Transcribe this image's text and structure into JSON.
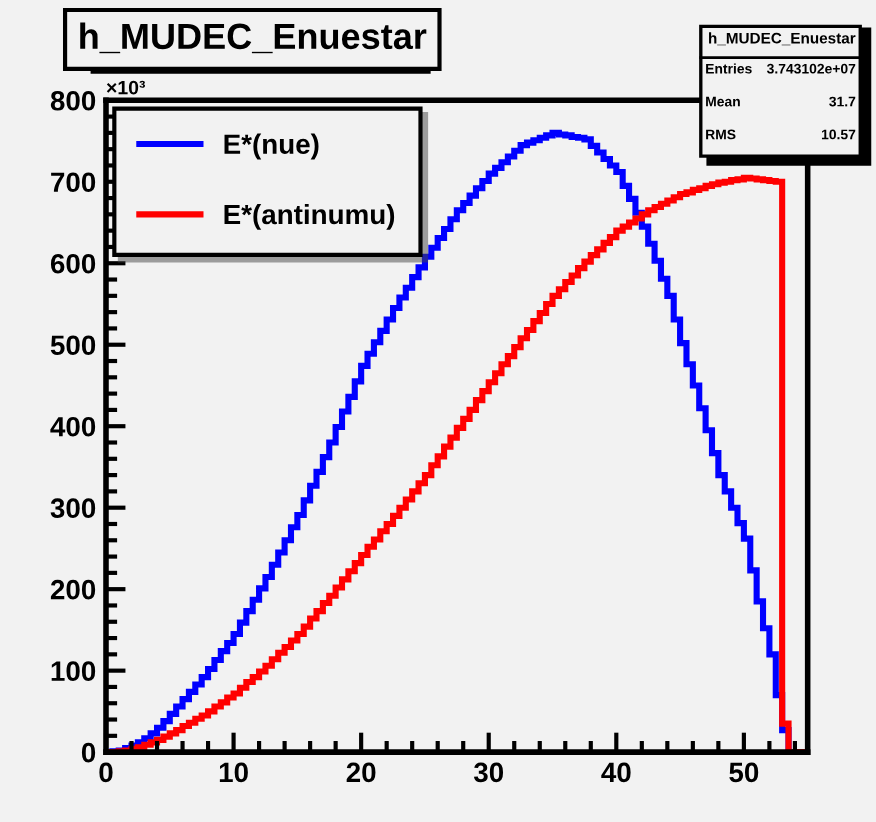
{
  "chart_data": {
    "type": "histogram",
    "title": "h_MUDEC_Enuestar",
    "bins": [
      0,
      0.5,
      1,
      1.5,
      2,
      2.5,
      3,
      3.5,
      4,
      4.5,
      5,
      5.5,
      6,
      6.5,
      7,
      7.5,
      8,
      8.5,
      9,
      9.5,
      10,
      10.5,
      11,
      11.5,
      12,
      12.5,
      13,
      13.5,
      14,
      14.5,
      15,
      15.5,
      16,
      16.5,
      17,
      17.5,
      18,
      18.5,
      19,
      19.5,
      20,
      20.5,
      21,
      21.5,
      22,
      22.5,
      23,
      23.5,
      24,
      24.5,
      25,
      25.5,
      26,
      26.5,
      27,
      27.5,
      28,
      28.5,
      29,
      29.5,
      30,
      30.5,
      31,
      31.5,
      32,
      32.5,
      33,
      33.5,
      34,
      34.5,
      35,
      35.5,
      36,
      36.5,
      37,
      37.5,
      38,
      38.5,
      39,
      39.5,
      40,
      40.5,
      41,
      41.5,
      42,
      42.5,
      43,
      43.5,
      44,
      44.5,
      45,
      45.5,
      46,
      46.5,
      47,
      47.5,
      48,
      48.5,
      49,
      49.5,
      50,
      50.5,
      51,
      51.5,
      52,
      52.5,
      53,
      53.5,
      54,
      54.5,
      55
    ],
    "series": [
      {
        "name": "E*(nue)",
        "color": "#0000ff",
        "values": [
          0,
          1,
          2,
          5,
          8,
          12,
          17,
          23,
          30,
          38,
          47,
          56,
          65,
          74,
          83,
          92,
          102,
          113,
          124,
          134,
          145,
          159,
          173,
          187,
          201,
          215,
          230,
          245,
          260,
          276,
          291,
          309,
          327,
          344,
          362,
          380,
          399,
          418,
          436,
          455,
          474,
          489,
          503,
          517,
          531,
          545,
          558,
          570,
          583,
          595,
          608,
          619,
          631,
          642,
          654,
          665,
          674,
          683,
          692,
          701,
          710,
          717,
          724,
          731,
          738,
          745,
          748,
          751,
          754,
          757,
          760,
          758,
          757,
          755,
          754,
          752,
          744,
          736,
          728,
          720,
          712,
          695,
          679,
          662,
          645,
          624,
          603,
          581,
          560,
          531,
          502,
          476,
          450,
          422,
          395,
          367,
          340,
          320,
          300,
          281,
          262,
          223,
          185,
          152,
          120,
          70,
          27,
          0,
          0,
          0
        ]
      },
      {
        "name": "E*(antinumu)",
        "color": "#ff0000",
        "values": [
          0,
          0,
          1,
          2,
          4,
          6,
          9,
          12,
          15,
          19,
          23,
          27,
          32,
          36,
          41,
          45,
          50,
          56,
          61,
          67,
          72,
          79,
          86,
          92,
          99,
          106,
          114,
          122,
          129,
          137,
          145,
          154,
          164,
          173,
          183,
          192,
          202,
          212,
          222,
          232,
          242,
          252,
          261,
          271,
          280,
          290,
          300,
          310,
          320,
          330,
          340,
          352,
          363,
          375,
          386,
          398,
          409,
          420,
          432,
          443,
          454,
          465,
          476,
          486,
          497,
          508,
          518,
          529,
          539,
          550,
          560,
          568,
          577,
          585,
          594,
          602,
          610,
          617,
          625,
          632,
          640,
          645,
          650,
          655,
          660,
          665,
          669,
          673,
          677,
          681,
          685,
          687,
          690,
          692,
          695,
          697,
          699,
          700,
          702,
          703,
          705,
          704,
          703,
          702,
          701,
          700,
          35,
          0,
          0,
          0
        ]
      }
    ],
    "xlim": [
      0,
      55
    ],
    "ylim": [
      0,
      800
    ],
    "xticks": [
      0,
      10,
      20,
      30,
      40,
      50
    ],
    "yticks": [
      0,
      100,
      200,
      300,
      400,
      500,
      600,
      700,
      800
    ],
    "legend": "top left",
    "grid": false,
    "annotations": [
      "×10³",
      "h_MUDEC_Enuestar",
      "Entries",
      "3.743102e+07",
      "Mean",
      "31.7",
      "RMS",
      "10.57"
    ]
  }
}
